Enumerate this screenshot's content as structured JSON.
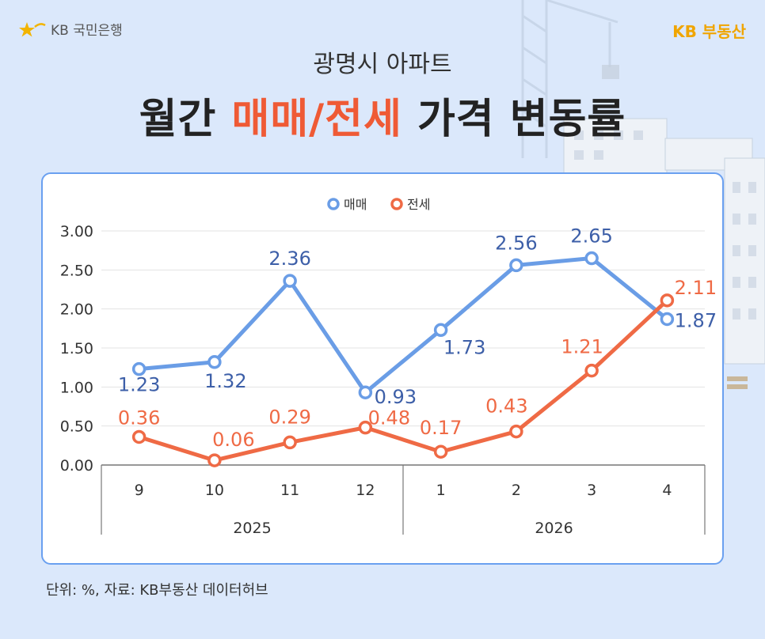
{
  "header": {
    "bank_logo_text": "KB 국민은행",
    "brand_logo_kb": "KB",
    "brand_logo_text": "부동산",
    "subtitle": "광명시 아파트",
    "title_pre": "월간 ",
    "title_highlight": "매매/전세",
    "title_post": " 가격 변동률"
  },
  "footer": {
    "note": "단위: %, 자료: KB부동산 데이터허브"
  },
  "colors": {
    "sale": "#6a9de6",
    "jeonse": "#ef6a45",
    "sale_label": "#3d5fa8",
    "jeonse_label": "#ef6a45",
    "title_highlight": "#ef5a35"
  },
  "chart_data": {
    "type": "line",
    "categories": [
      "9",
      "10",
      "11",
      "12",
      "1",
      "2",
      "3",
      "4"
    ],
    "groups": [
      {
        "label": "2025",
        "start": 0,
        "end": 3
      },
      {
        "label": "2026",
        "start": 4,
        "end": 7
      }
    ],
    "series": [
      {
        "name": "매매",
        "values": [
          1.23,
          1.32,
          2.36,
          0.93,
          1.73,
          2.56,
          2.65,
          1.87
        ],
        "labels": [
          "1.23",
          "1.32",
          "2.36",
          "0.93",
          "1.73",
          "2.56",
          "2.65",
          "1.87"
        ]
      },
      {
        "name": "전세",
        "values": [
          0.36,
          0.06,
          0.29,
          0.48,
          0.17,
          0.43,
          1.21,
          2.11
        ],
        "labels": [
          "0.36",
          "0.06",
          "0.29",
          "0.48",
          "0.17",
          "0.43",
          "1.21",
          "2.11"
        ]
      }
    ],
    "yticks": [
      "0.00",
      "0.50",
      "1.00",
      "1.50",
      "2.00",
      "2.50",
      "3.00"
    ],
    "ylim": [
      0,
      3
    ],
    "legend": "top-center",
    "grid": true
  }
}
